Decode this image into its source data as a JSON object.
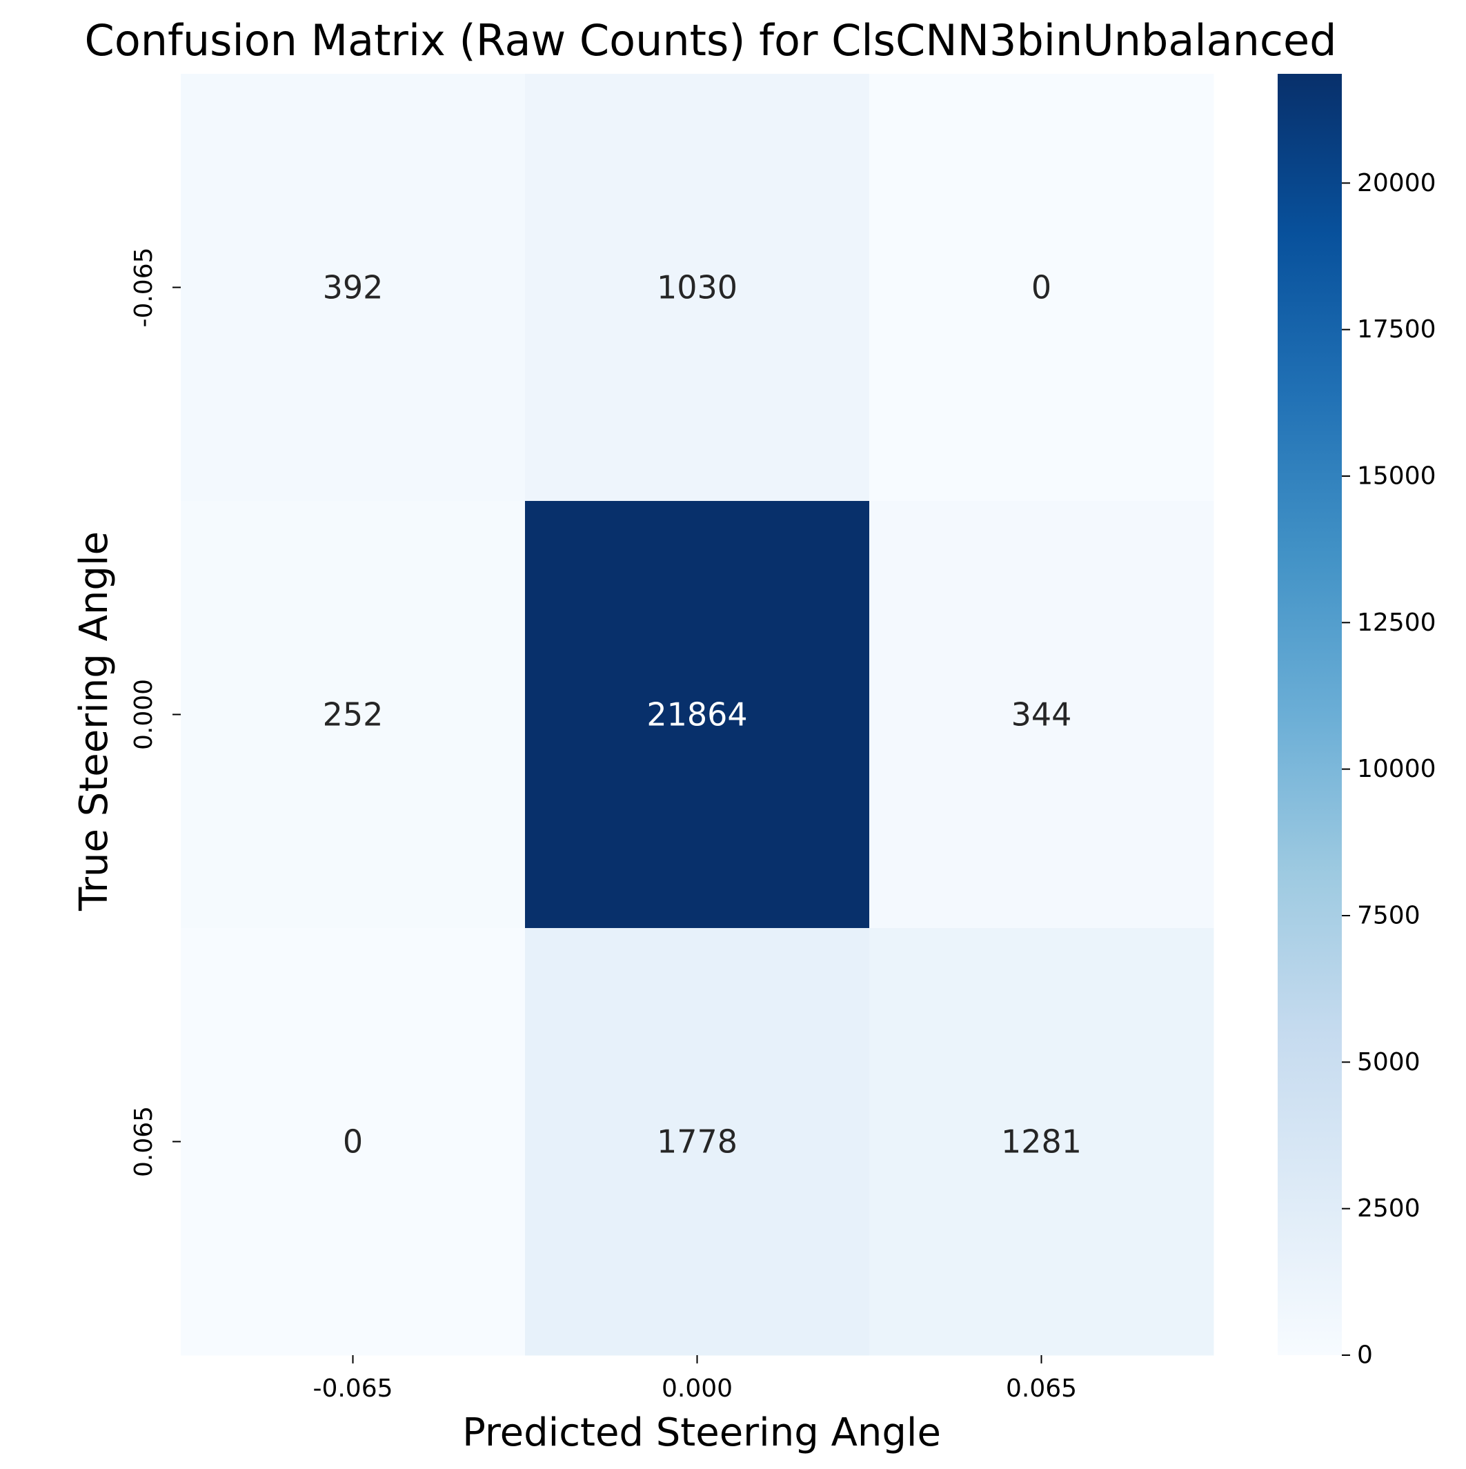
{
  "chart_data": {
    "type": "heatmap",
    "title": "Confusion Matrix (Raw Counts) for ClsCNN3binUnbalanced",
    "xlabel": "Predicted Steering Angle",
    "ylabel": "True Steering Angle",
    "x_categories": [
      "-0.065",
      "0.000",
      "0.065"
    ],
    "y_categories": [
      "-0.065",
      "0.000",
      "0.065"
    ],
    "matrix": [
      [
        392,
        1030,
        0
      ],
      [
        252,
        21864,
        344
      ],
      [
        0,
        1778,
        1281
      ]
    ],
    "colormap": "Blues",
    "colorbar": {
      "min": 0,
      "max": 21864,
      "ticks": [
        0,
        2500,
        5000,
        7500,
        10000,
        12500,
        15000,
        17500,
        20000
      ]
    },
    "colors": {
      "low": "#f7fbff",
      "high": "#08306b",
      "text_dark": "#262626",
      "text_light": "#ffffff"
    }
  }
}
